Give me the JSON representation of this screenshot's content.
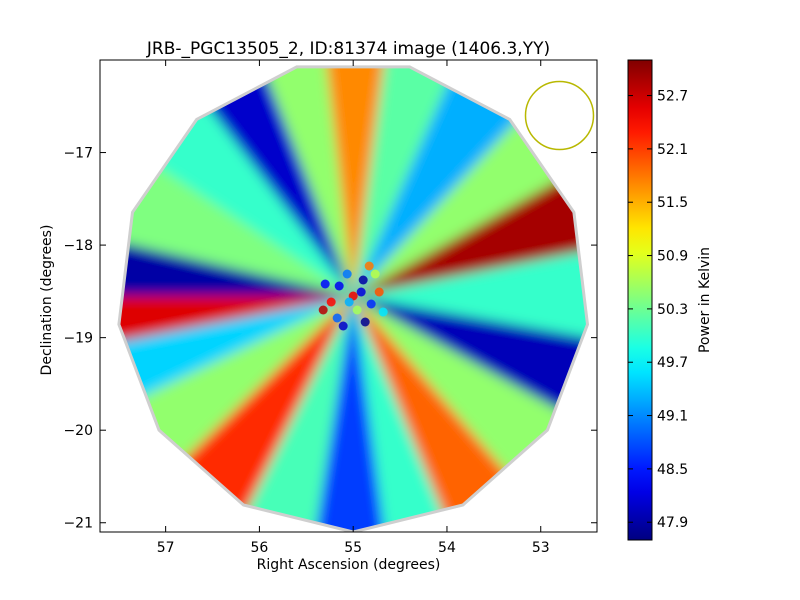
{
  "chart_data": {
    "type": "heatmap",
    "title": "JRB-_PGC13505_2, ID:81374 image (1406.3,YY)",
    "xlabel": "Right Ascension (degrees)",
    "ylabel": "Declination (degrees)",
    "xlim": [
      57.7,
      52.4
    ],
    "ylim": [
      -21.1,
      -16.0
    ],
    "xticks": [
      "57",
      "56",
      "55",
      "54",
      "53"
    ],
    "xtick_values": [
      57,
      56,
      55,
      54,
      53
    ],
    "yticks": [
      "−17",
      "−18",
      "−19",
      "−20",
      "−21"
    ],
    "ytick_values": [
      -17,
      -18,
      -19,
      -20,
      -21
    ],
    "colorbar": {
      "label": "Power in Kelvin",
      "range": [
        47.7,
        53.1
      ],
      "ticks": [
        "47.9",
        "48.5",
        "49.1",
        "49.7",
        "50.3",
        "50.9",
        "51.5",
        "52.1",
        "52.7"
      ],
      "tick_values": [
        47.9,
        48.5,
        49.1,
        49.7,
        50.3,
        50.9,
        51.5,
        52.1,
        52.7
      ]
    },
    "center": {
      "ra": 55.0,
      "dec": -18.55
    },
    "radius_deg": 2.55,
    "beam_marker": {
      "ra": 52.8,
      "dec": -16.6,
      "color": "#b8b800"
    },
    "rays": [
      {
        "angle_deg": 90,
        "value": 51.7
      },
      {
        "angle_deg": 75,
        "value": 50.2
      },
      {
        "angle_deg": 57,
        "value": 49.3
      },
      {
        "angle_deg": 37,
        "value": 50.5
      },
      {
        "angle_deg": 22,
        "value": 52.9
      },
      {
        "angle_deg": 0,
        "value": 50.0
      },
      {
        "angle_deg": -20,
        "value": 48.0
      },
      {
        "angle_deg": -38,
        "value": 50.5
      },
      {
        "angle_deg": -60,
        "value": 51.9
      },
      {
        "angle_deg": -75,
        "value": 50.0
      },
      {
        "angle_deg": -90,
        "value": 48.7
      },
      {
        "angle_deg": -108,
        "value": 50.1
      },
      {
        "angle_deg": -125,
        "value": 52.2
      },
      {
        "angle_deg": -147,
        "value": 50.5
      },
      {
        "angle_deg": -162,
        "value": 49.5
      },
      {
        "angle_deg": -176,
        "value": 52.6
      },
      {
        "angle_deg": 176,
        "value": 47.9
      },
      {
        "angle_deg": 158,
        "value": 50.4
      },
      {
        "angle_deg": 135,
        "value": 50.0
      },
      {
        "angle_deg": 120,
        "value": 48.1
      },
      {
        "angle_deg": 103,
        "value": 50.5
      }
    ]
  }
}
